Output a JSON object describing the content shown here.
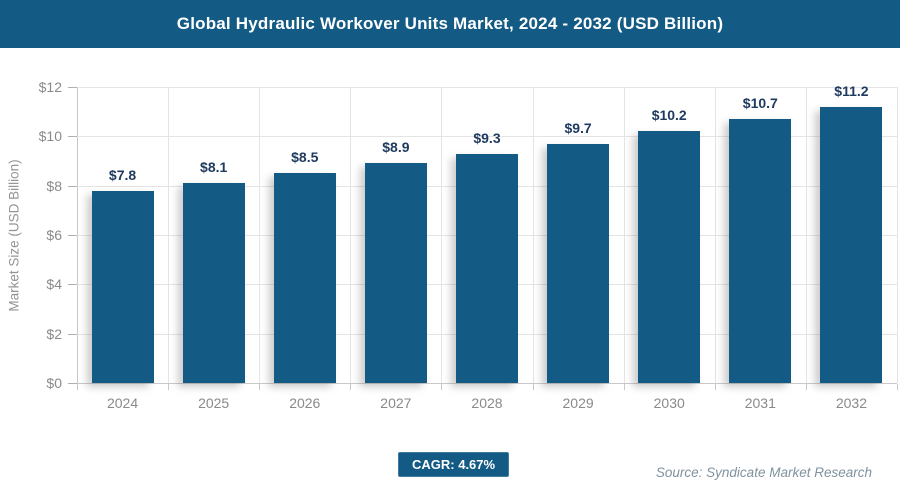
{
  "banner": {
    "title": "Global Hydraulic Workover Units Market, 2024 - 2032 (USD Billion)",
    "bg_color": "#135b84",
    "text_color": "#ffffff"
  },
  "chart_data": {
    "type": "bar",
    "categories": [
      "2024",
      "2025",
      "2026",
      "2027",
      "2028",
      "2029",
      "2030",
      "2031",
      "2032"
    ],
    "values": [
      7.8,
      8.1,
      8.5,
      8.9,
      9.3,
      9.7,
      10.2,
      10.7,
      11.2
    ],
    "data_labels": [
      "$7.8",
      "$8.1",
      "$8.5",
      "$8.9",
      "$9.3",
      "$9.7",
      "$10.2",
      "$10.7",
      "$11.2"
    ],
    "title": "Global Hydraulic Workover Units Market, 2024 - 2032 (USD Billion)",
    "xlabel": "",
    "ylabel": "Market Size (USD Billion)",
    "ylim": [
      0,
      12
    ],
    "ytick_step": 2,
    "ytick_labels": [
      "$0",
      "$2",
      "$4",
      "$6",
      "$8",
      "$10",
      "$12"
    ],
    "grid": "on",
    "legend": "none",
    "bar_color": "#135b84",
    "data_label_color": "#1e3a5f"
  },
  "footer": {
    "cagr_label": "CAGR: 4.67%",
    "source_text": "Source: Syndicate Market Research"
  }
}
